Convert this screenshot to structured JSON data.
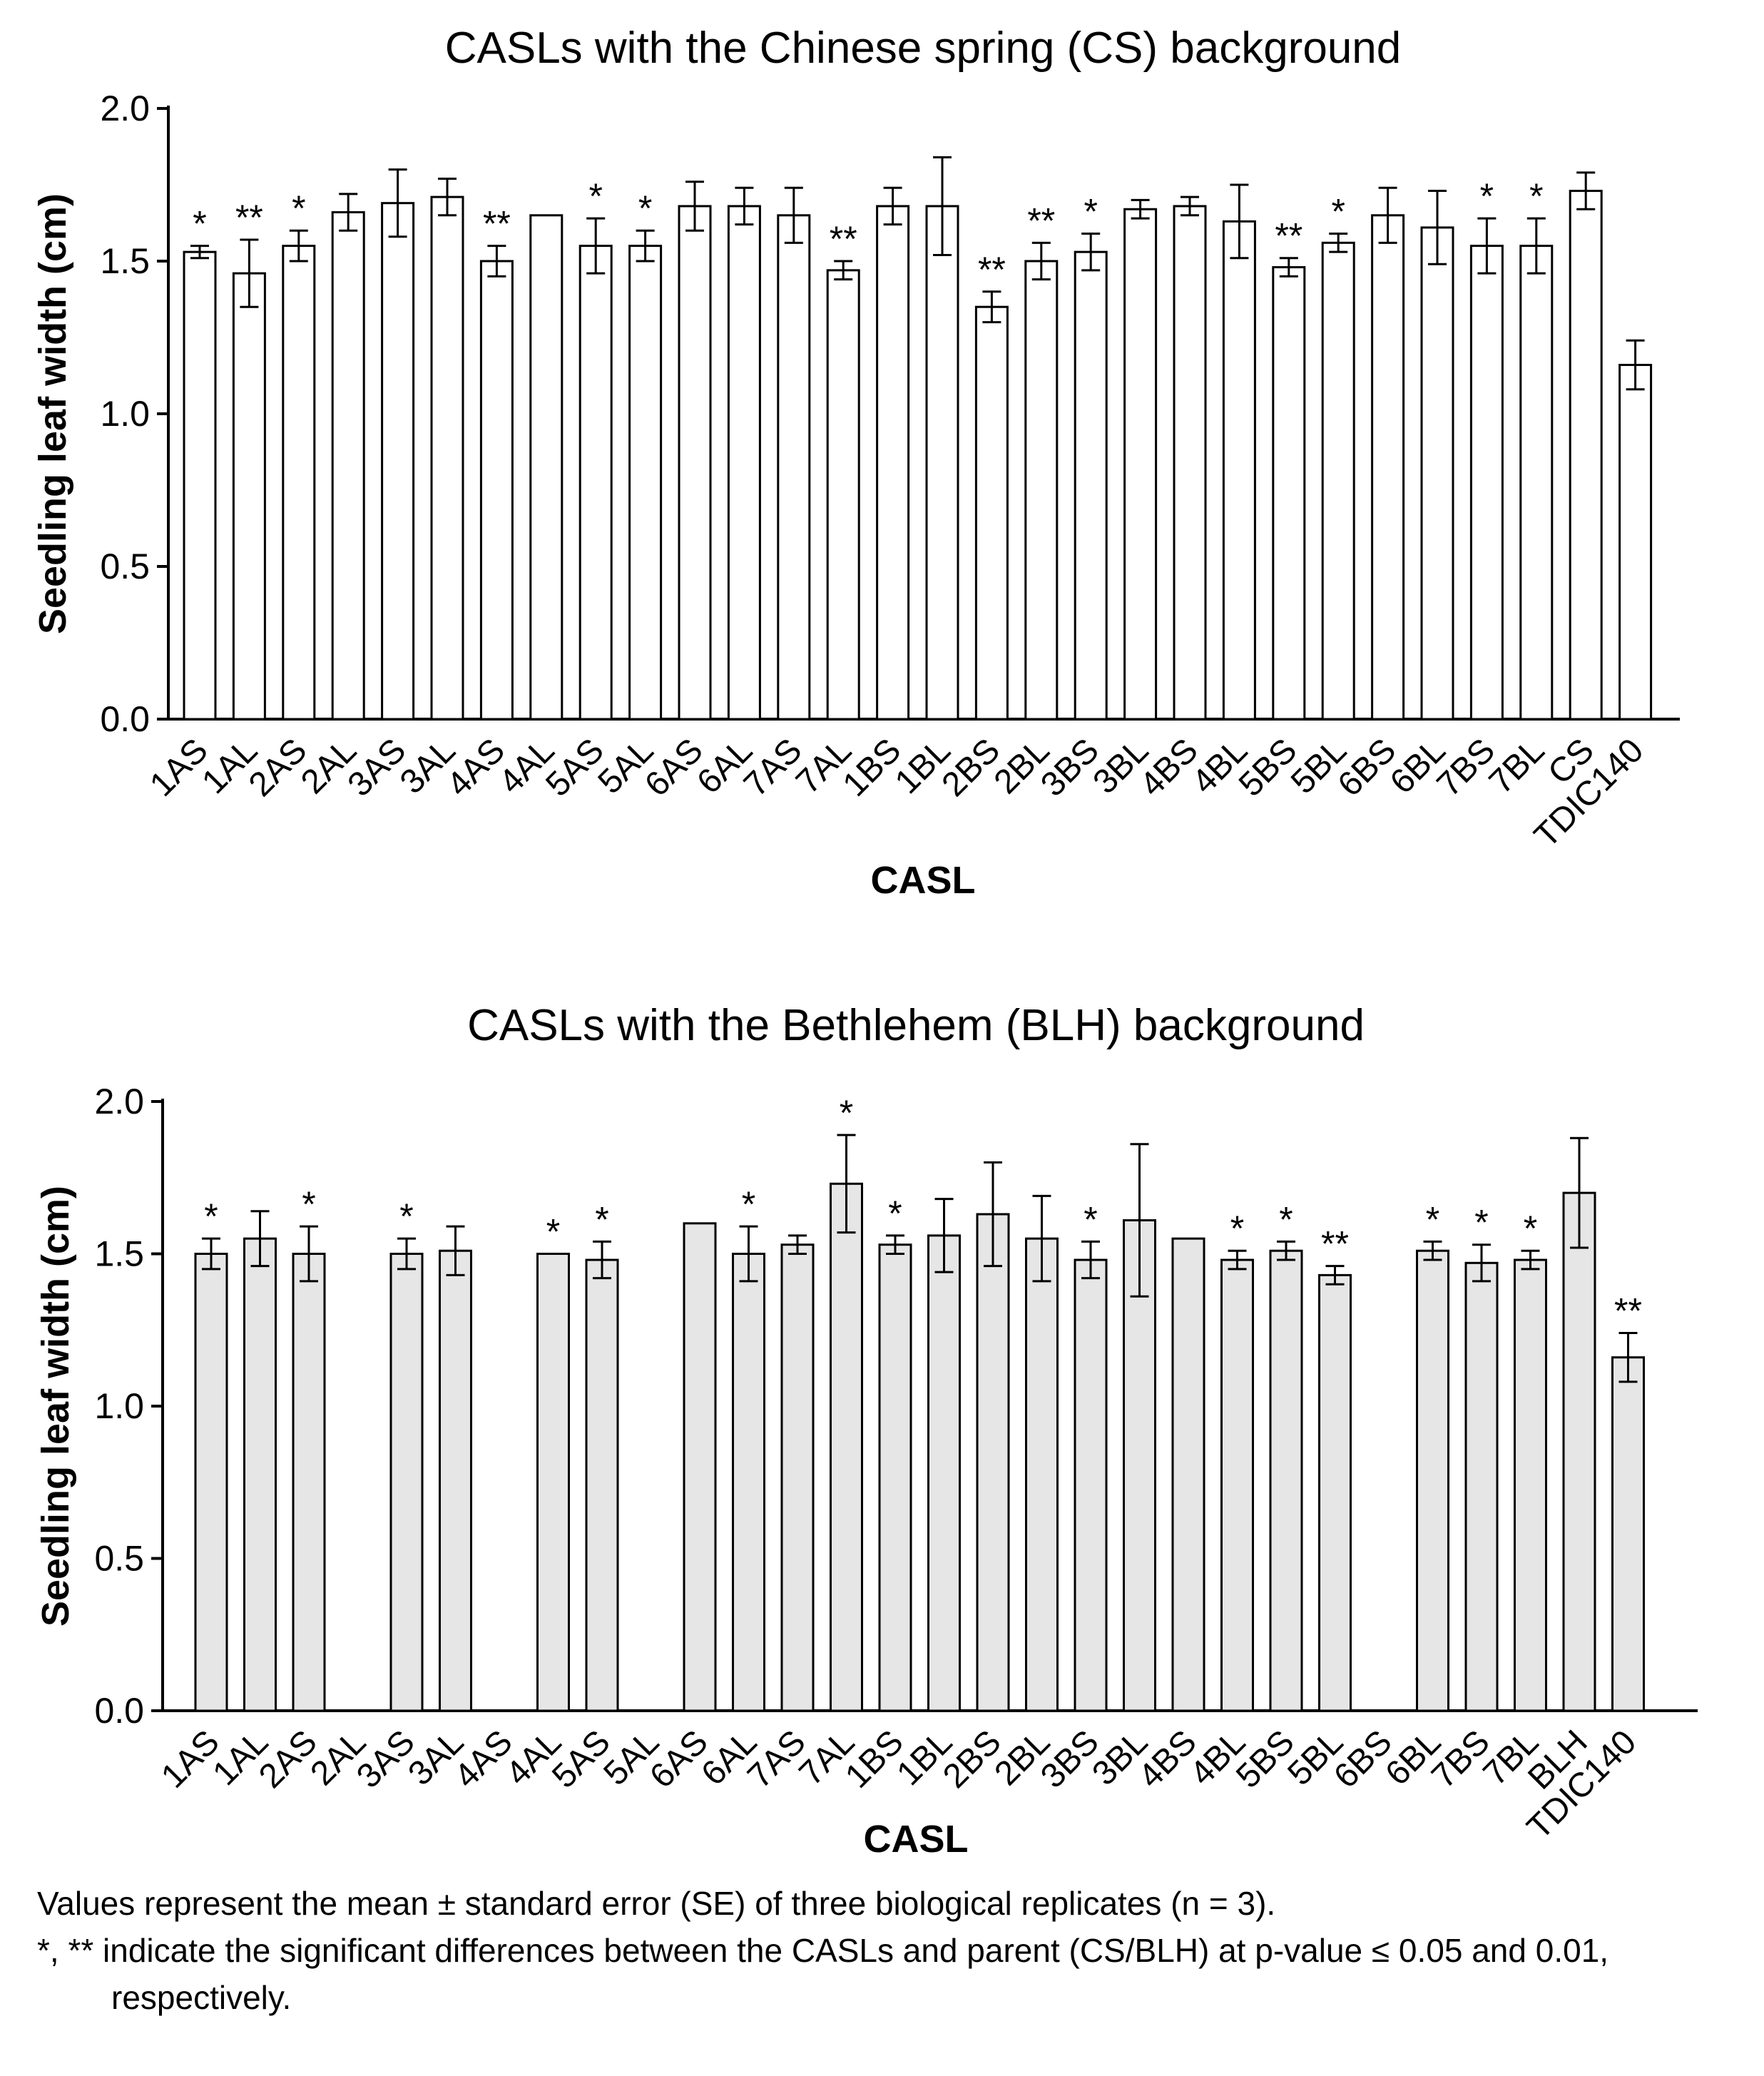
{
  "chart_data": [
    {
      "type": "bar",
      "title": "CASLs with the Chinese spring (CS) background",
      "xlabel": "CASL",
      "ylabel": "Seedling leaf width (cm)",
      "ylim": [
        0,
        2.0
      ],
      "yticks": [
        "0.0",
        "0.5",
        "1.0",
        "1.5",
        "2.0"
      ],
      "bar_color": "#ffffff",
      "categories": [
        "1AS",
        "1AL",
        "2AS",
        "2AL",
        "3AS",
        "3AL",
        "4AS",
        "4AL",
        "5AS",
        "5AL",
        "6AS",
        "6AL",
        "7AS",
        "7AL",
        "1BS",
        "1BL",
        "2BS",
        "2BL",
        "3BS",
        "3BL",
        "4BS",
        "4BL",
        "5BS",
        "5BL",
        "6BS",
        "6BL",
        "7BS",
        "7BL",
        "CS",
        "TDIC140"
      ],
      "values": [
        1.53,
        1.46,
        1.55,
        1.66,
        1.69,
        1.71,
        1.5,
        1.65,
        1.55,
        1.55,
        1.68,
        1.68,
        1.65,
        1.47,
        1.68,
        1.68,
        1.35,
        1.5,
        1.53,
        1.67,
        1.68,
        1.63,
        1.48,
        1.56,
        1.65,
        1.61,
        1.55,
        1.55,
        1.73,
        1.16
      ],
      "errors": [
        0.02,
        0.11,
        0.05,
        0.06,
        0.11,
        0.06,
        0.05,
        0,
        0.09,
        0.05,
        0.08,
        0.06,
        0.09,
        0.03,
        0.06,
        0.16,
        0.05,
        0.06,
        0.06,
        0.03,
        0.03,
        0.12,
        0.03,
        0.03,
        0.09,
        0.12,
        0.09,
        0.09,
        0.06,
        0.08
      ],
      "significance": [
        "*",
        "**",
        "*",
        "",
        "",
        "",
        "**",
        "",
        "*",
        "*",
        "",
        "",
        "",
        "**",
        "",
        "",
        "**",
        "**",
        "*",
        "",
        "",
        "",
        "**",
        "*",
        "",
        "",
        "*",
        "*",
        "",
        ""
      ]
    },
    {
      "type": "bar",
      "title": "CASLs with the Bethlehem (BLH) background",
      "xlabel": "CASL",
      "ylabel": "Seedling leaf width (cm)",
      "ylim": [
        0,
        2.0
      ],
      "yticks": [
        "0.0",
        "0.5",
        "1.0",
        "1.5",
        "2.0"
      ],
      "bar_color": "#e6e6e6",
      "categories": [
        "1AS",
        "1AL",
        "2AS",
        "2AL",
        "3AS",
        "3AL",
        "4AS",
        "4AL",
        "5AS",
        "5AL",
        "6AS",
        "6AL",
        "7AS",
        "7AL",
        "1BS",
        "1BL",
        "2BS",
        "2BL",
        "3BS",
        "3BL",
        "4BS",
        "4BL",
        "5BS",
        "5BL",
        "6BS",
        "6BL",
        "7BS",
        "7BL",
        "BLH",
        "TDIC140"
      ],
      "values": [
        1.5,
        1.55,
        1.5,
        null,
        1.5,
        1.51,
        null,
        1.5,
        1.48,
        null,
        1.6,
        1.5,
        1.53,
        1.73,
        1.53,
        1.56,
        1.63,
        1.55,
        1.48,
        1.61,
        1.55,
        1.48,
        1.51,
        1.43,
        null,
        1.51,
        1.47,
        1.48,
        1.7,
        1.16
      ],
      "errors": [
        0.05,
        0.09,
        0.09,
        null,
        0.05,
        0.08,
        null,
        0,
        0.06,
        null,
        0,
        0.09,
        0.03,
        0.16,
        0.03,
        0.12,
        0.17,
        0.14,
        0.06,
        0.25,
        0,
        0.03,
        0.03,
        0.03,
        null,
        0.03,
        0.06,
        0.03,
        0.18,
        0.08
      ],
      "significance": [
        "*",
        "",
        "*",
        "",
        "*",
        "",
        "",
        "*",
        "*",
        "",
        "",
        "*",
        "",
        "*",
        "*",
        "",
        "",
        "",
        "*",
        "",
        "",
        "*",
        "*",
        "**",
        "",
        "*",
        "*",
        "*",
        "",
        "**"
      ]
    }
  ],
  "footnotes": {
    "note1": "Values represent the mean ± standard error (SE) of three biological replicates (n = 3).",
    "note2": "*, ** indicate the significant differences between the CASLs and parent (CS/BLH) at p-value ≤ 0.05 and 0.01, respectively."
  }
}
